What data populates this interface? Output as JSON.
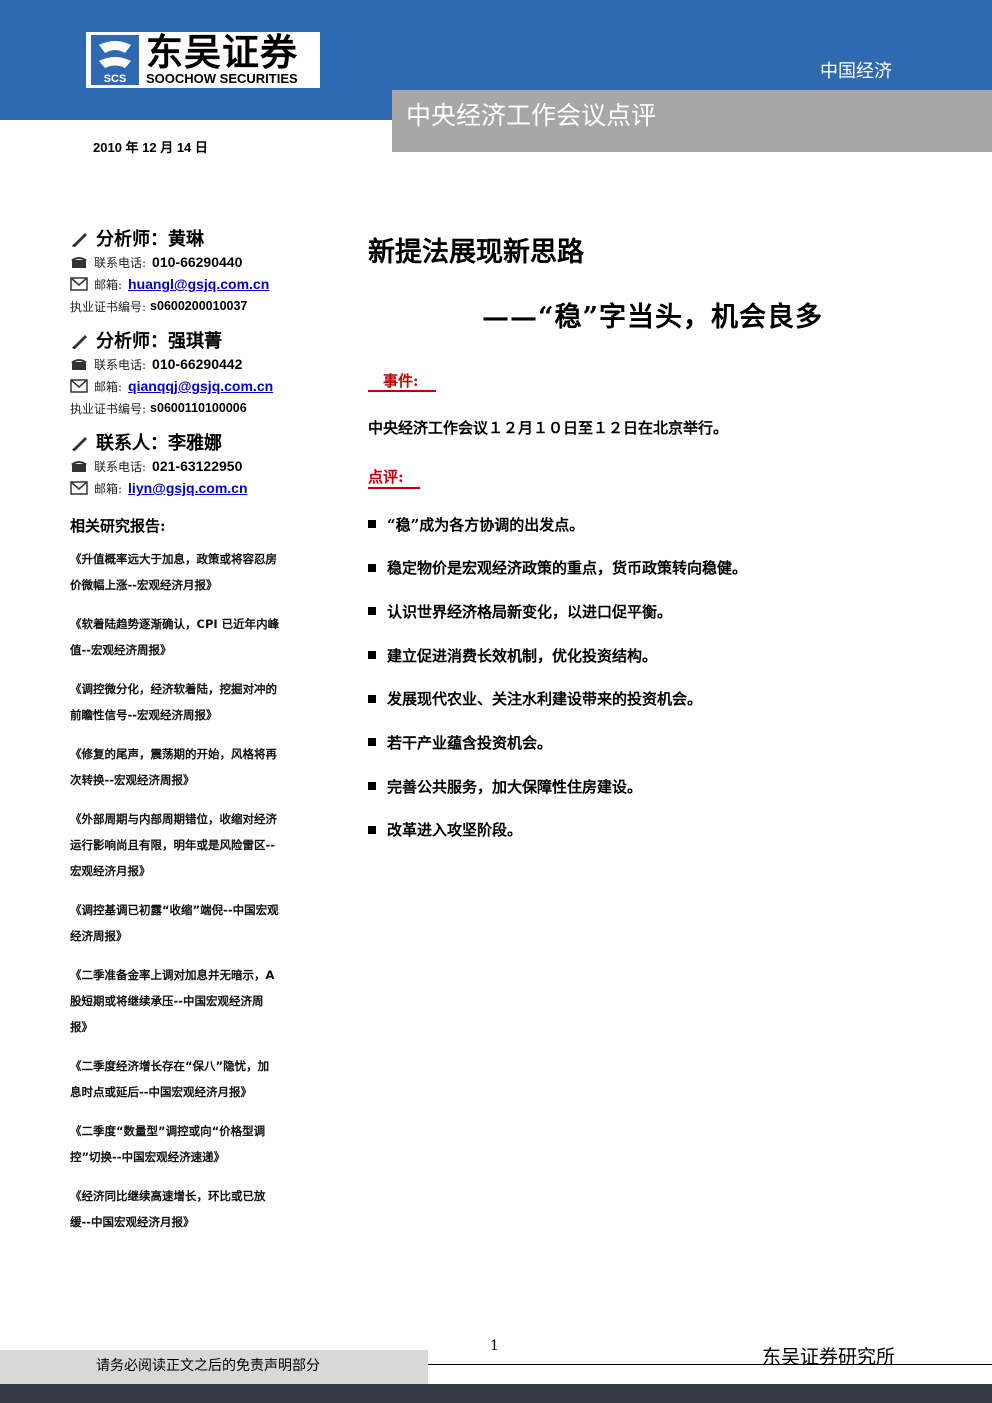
{
  "header": {
    "logo_cn": "东吴证券",
    "logo_en": "SOOCHOW SECURITIES",
    "logo_mark_text": "SCS",
    "category": "中国经济",
    "report_type": "中央经济工作会议点评",
    "date": "2010 年 12 月 14 日",
    "band_color": "#2f69b0"
  },
  "analysts": [
    {
      "role_name": "分析师：黄琳",
      "phone_label": "联系电话:",
      "phone": "010-66290440",
      "email_label": "邮箱:",
      "email": "huangl@gsjq.com.cn",
      "cert_label": "执业证书编号:",
      "cert": "s0600200010037"
    },
    {
      "role_name": "分析师：强琪菁",
      "phone_label": "联系电话:",
      "phone": "010-66290442",
      "email_label": "邮箱:",
      "email": "qianqqj@gsjq.com.cn",
      "cert_label": "执业证书编号:",
      "cert": "s0600110100006"
    },
    {
      "role_name": "联系人：李雅娜",
      "phone_label": "联系电话:",
      "phone": "021-63122950",
      "email_label": "邮箱:",
      "email": "liyn@gsjq.com.cn"
    }
  ],
  "related": {
    "title": "相关研究报告:",
    "items": [
      "《升值概率远大于加息，政策或将容忍房价微幅上涨--宏观经济月报》",
      "《软着陆趋势逐渐确认，CPI 已近年内峰值--宏观经济周报》",
      "《调控微分化，经济软着陆，挖掘对冲的前瞻性信号--宏观经济周报》",
      "《修复的尾声，震荡期的开始，风格将再次转换--宏观经济周报》",
      "《外部周期与内部周期错位，收缩对经济运行影响尚且有限，明年或是风险雷区--宏观经济月报》",
      "《调控基调已初露“收缩”端倪--中国宏观经济周报》",
      "《二季准备金率上调对加息并无暗示，A 股短期或将继续承压--中国宏观经济周报》",
      "《二季度经济增长存在“保八”隐忧，加息时点或延后--中国宏观经济月报》",
      "《二季度“数量型”调控或向“价格型调控”切换--中国宏观经济速递》",
      "《经济同比继续高速增长，环比或已放缓--中国宏观经济月报》"
    ]
  },
  "main": {
    "title": "新提法展现新思路",
    "subtitle": "——“稳”字当头，机会良多",
    "event_label": "事件:",
    "event_text": "中央经济工作会议１２月１０日至１２日在北京举行。",
    "comment_label": "点评:",
    "bullets": [
      "“稳”成为各方协调的出发点。",
      "稳定物价是宏观经济政策的重点，货币政策转向稳健。",
      "认识世界经济格局新变化，以进口促平衡。",
      "建立促进消费长效机制，优化投资结构。",
      "发展现代农业、关注水利建设带来的投资机会。",
      "若干产业蕴含投资机会。",
      "完善公共服务，加大保障性住房建设。",
      "改革进入攻坚阶段。"
    ],
    "accent_color": "#c00000"
  },
  "footer": {
    "page_number": "1",
    "disclaimer": "请务必阅读正文之后的免责声明部分",
    "institute": "东吴证券研究所"
  }
}
